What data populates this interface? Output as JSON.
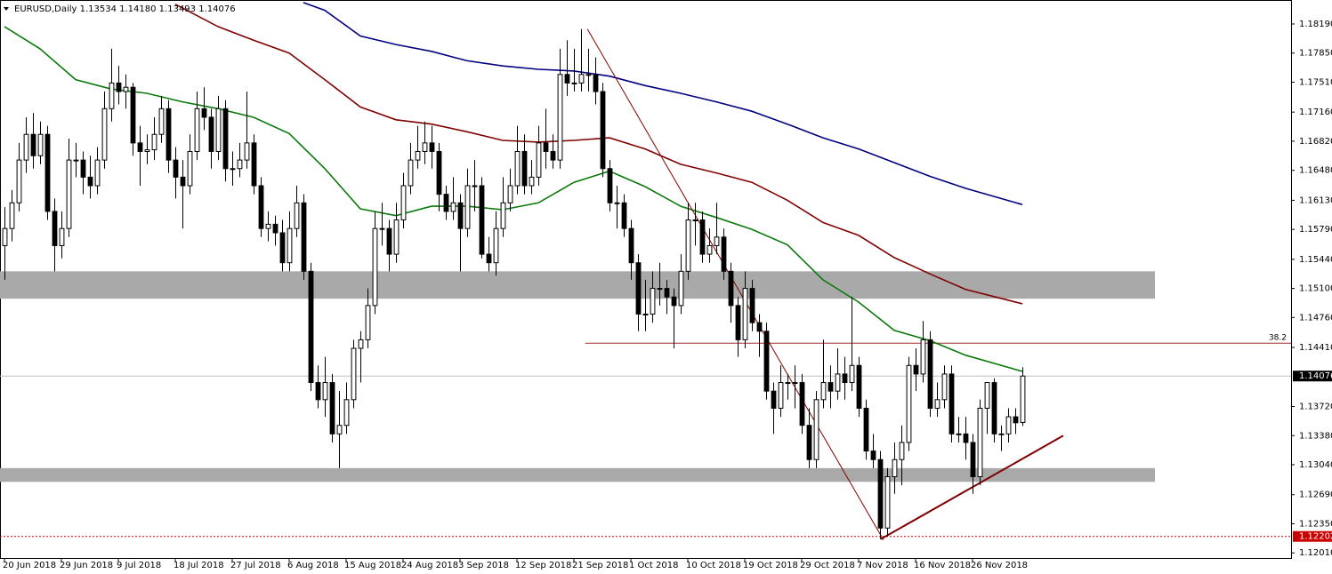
{
  "chart_data": {
    "type": "candlestick",
    "title": "EURUSD,Daily  1.13534 1.14180 1.13493 1.14076",
    "categories": [
      "20 Jun 2018",
      null,
      null,
      null,
      null,
      null,
      null,
      null,
      "29 Jun 2018",
      null,
      null,
      null,
      null,
      null,
      null,
      null,
      "9 Jul 2018",
      null,
      null,
      null,
      null,
      null,
      null,
      null,
      "18 Jul 2018",
      null,
      null,
      null,
      null,
      null,
      null,
      null,
      "27 Jul 2018",
      null,
      null,
      null,
      null,
      null,
      null,
      null,
      "6 Aug 2018",
      null,
      null,
      null,
      null,
      null,
      null,
      null,
      "15 Aug 2018",
      null,
      null,
      null,
      null,
      null,
      null,
      null,
      "24 Aug 2018",
      null,
      null,
      null,
      null,
      null,
      null,
      null,
      "3 Sep 2018",
      null,
      null,
      null,
      null,
      null,
      null,
      null,
      "12 Sep 2018",
      null,
      null,
      null,
      null,
      null,
      null,
      null,
      "21 Sep 2018",
      null,
      null,
      null,
      null,
      null,
      null,
      null,
      "1 Oct 2018",
      null,
      null,
      null,
      null,
      null,
      null,
      null,
      "10 Oct 2018",
      null,
      null,
      null,
      null,
      null,
      null,
      null,
      "19 Oct 2018",
      null,
      null,
      null,
      null,
      null,
      null,
      null,
      "29 Oct 2018",
      null,
      null,
      null,
      null,
      null,
      null,
      null,
      "7 Nov 2018",
      null,
      null,
      null,
      null,
      null,
      null,
      null,
      "16 Nov 2018",
      null,
      null,
      null,
      null,
      null,
      null,
      null,
      "26 Nov 2018",
      null,
      null,
      null,
      null,
      null,
      null,
      null
    ],
    "candles": [
      [
        1.156,
        1.1605,
        1.152,
        1.158
      ],
      [
        1.158,
        1.1625,
        1.1565,
        1.161
      ],
      [
        1.161,
        1.168,
        1.16,
        1.166
      ],
      [
        1.166,
        1.171,
        1.1645,
        1.169
      ],
      [
        1.169,
        1.1715,
        1.165,
        1.1665
      ],
      [
        1.1665,
        1.1705,
        1.1655,
        1.169
      ],
      [
        1.169,
        1.17,
        1.159,
        1.16
      ],
      [
        1.16,
        1.1615,
        1.153,
        1.156
      ],
      [
        1.156,
        1.16,
        1.1545,
        1.158
      ],
      [
        1.158,
        1.1685,
        1.157,
        1.166
      ],
      [
        1.166,
        1.168,
        1.164,
        1.166
      ],
      [
        1.166,
        1.167,
        1.162,
        1.164
      ],
      [
        1.164,
        1.1665,
        1.1615,
        1.163
      ],
      [
        1.163,
        1.1675,
        1.162,
        1.166
      ],
      [
        1.166,
        1.174,
        1.165,
        1.172
      ],
      [
        1.172,
        1.179,
        1.1705,
        1.175
      ],
      [
        1.175,
        1.177,
        1.1725,
        1.174
      ],
      [
        1.174,
        1.176,
        1.172,
        1.1745
      ],
      [
        1.1745,
        1.175,
        1.1665,
        1.168
      ],
      [
        1.168,
        1.17,
        1.163,
        1.167
      ],
      [
        1.167,
        1.169,
        1.1655,
        1.1672
      ],
      [
        1.1672,
        1.171,
        1.166,
        1.169
      ],
      [
        1.169,
        1.1735,
        1.168,
        1.172
      ],
      [
        1.172,
        1.173,
        1.1645,
        1.166
      ],
      [
        1.166,
        1.1675,
        1.1615,
        1.164
      ],
      [
        1.164,
        1.166,
        1.158,
        1.163
      ],
      [
        1.163,
        1.169,
        1.162,
        1.167
      ],
      [
        1.167,
        1.174,
        1.166,
        1.172
      ],
      [
        1.172,
        1.1745,
        1.1695,
        1.171
      ],
      [
        1.171,
        1.172,
        1.165,
        1.167
      ],
      [
        1.167,
        1.1735,
        1.166,
        1.172
      ],
      [
        1.172,
        1.173,
        1.1635,
        1.165
      ],
      [
        1.165,
        1.167,
        1.163,
        1.165
      ],
      [
        1.165,
        1.168,
        1.164,
        1.166
      ],
      [
        1.166,
        1.174,
        1.165,
        1.168
      ],
      [
        1.168,
        1.169,
        1.162,
        1.163
      ],
      [
        1.163,
        1.164,
        1.157,
        1.158
      ],
      [
        1.158,
        1.16,
        1.1565,
        1.1585
      ],
      [
        1.1585,
        1.1595,
        1.156,
        1.1575
      ],
      [
        1.1575,
        1.159,
        1.153,
        1.154
      ],
      [
        1.154,
        1.16,
        1.153,
        1.158
      ],
      [
        1.158,
        1.163,
        1.157,
        1.161
      ],
      [
        1.161,
        1.162,
        1.152,
        1.153
      ],
      [
        1.153,
        1.154,
        1.139,
        1.14
      ],
      [
        1.14,
        1.142,
        1.137,
        1.138
      ],
      [
        1.138,
        1.143,
        1.136,
        1.14
      ],
      [
        1.14,
        1.141,
        1.133,
        1.134
      ],
      [
        1.134,
        1.139,
        1.13,
        1.135
      ],
      [
        1.135,
        1.14,
        1.134,
        1.138
      ],
      [
        1.138,
        1.145,
        1.137,
        1.144
      ],
      [
        1.144,
        1.146,
        1.14,
        1.145
      ],
      [
        1.145,
        1.151,
        1.144,
        1.149
      ],
      [
        1.149,
        1.16,
        1.148,
        1.158
      ],
      [
        1.158,
        1.161,
        1.156,
        1.158
      ],
      [
        1.158,
        1.159,
        1.153,
        1.155
      ],
      [
        1.155,
        1.161,
        1.154,
        1.159
      ],
      [
        1.159,
        1.1645,
        1.158,
        1.163
      ],
      [
        1.163,
        1.168,
        1.162,
        1.166
      ],
      [
        1.166,
        1.17,
        1.165,
        1.167
      ],
      [
        1.167,
        1.1705,
        1.1655,
        1.168
      ],
      [
        1.168,
        1.17,
        1.165,
        1.167
      ],
      [
        1.167,
        1.168,
        1.16,
        1.162
      ],
      [
        1.162,
        1.163,
        1.159,
        1.16
      ],
      [
        1.16,
        1.164,
        1.159,
        1.161
      ],
      [
        1.161,
        1.162,
        1.153,
        1.158
      ],
      [
        1.158,
        1.165,
        1.157,
        1.163
      ],
      [
        1.163,
        1.166,
        1.16,
        1.163
      ],
      [
        1.163,
        1.164,
        1.1545,
        1.155
      ],
      [
        1.155,
        1.157,
        1.153,
        1.154
      ],
      [
        1.154,
        1.16,
        1.1525,
        1.158
      ],
      [
        1.158,
        1.164,
        1.157,
        1.161
      ],
      [
        1.161,
        1.165,
        1.16,
        1.163
      ],
      [
        1.163,
        1.17,
        1.162,
        1.167
      ],
      [
        1.167,
        1.169,
        1.162,
        1.163
      ],
      [
        1.163,
        1.166,
        1.162,
        1.164
      ],
      [
        1.164,
        1.17,
        1.163,
        1.168
      ],
      [
        1.168,
        1.172,
        1.165,
        1.167
      ],
      [
        1.167,
        1.169,
        1.165,
        1.166
      ],
      [
        1.166,
        1.179,
        1.165,
        1.176
      ],
      [
        1.176,
        1.18,
        1.1735,
        1.175
      ],
      [
        1.175,
        1.179,
        1.174,
        1.175
      ],
      [
        1.175,
        1.1813,
        1.174,
        1.176
      ],
      [
        1.176,
        1.179,
        1.174,
        1.176
      ],
      [
        1.176,
        1.178,
        1.1725,
        1.174
      ],
      [
        1.174,
        1.175,
        1.164,
        1.165
      ],
      [
        1.165,
        1.166,
        1.16,
        1.161
      ],
      [
        1.161,
        1.163,
        1.158,
        1.161
      ],
      [
        1.161,
        1.162,
        1.157,
        1.158
      ],
      [
        1.158,
        1.159,
        1.152,
        1.154
      ],
      [
        1.154,
        1.155,
        1.146,
        1.148
      ],
      [
        1.148,
        1.152,
        1.146,
        1.148
      ],
      [
        1.148,
        1.153,
        1.147,
        1.151
      ],
      [
        1.151,
        1.154,
        1.149,
        1.151
      ],
      [
        1.151,
        1.152,
        1.148,
        1.15
      ],
      [
        1.15,
        1.151,
        1.144,
        1.149
      ],
      [
        1.149,
        1.155,
        1.148,
        1.153
      ],
      [
        1.153,
        1.161,
        1.152,
        1.159
      ],
      [
        1.159,
        1.161,
        1.156,
        1.159
      ],
      [
        1.159,
        1.16,
        1.154,
        1.155
      ],
      [
        1.155,
        1.158,
        1.154,
        1.156
      ],
      [
        1.156,
        1.161,
        1.155,
        1.157
      ],
      [
        1.157,
        1.158,
        1.152,
        1.153
      ],
      [
        1.153,
        1.154,
        1.147,
        1.149
      ],
      [
        1.149,
        1.15,
        1.143,
        1.145
      ],
      [
        1.145,
        1.153,
        1.144,
        1.151
      ],
      [
        1.151,
        1.152,
        1.146,
        1.147
      ],
      [
        1.147,
        1.148,
        1.143,
        1.146
      ],
      [
        1.146,
        1.147,
        1.138,
        1.139
      ],
      [
        1.139,
        1.14,
        1.134,
        1.137
      ],
      [
        1.137,
        1.142,
        1.136,
        1.14
      ],
      [
        1.14,
        1.141,
        1.138,
        1.14
      ],
      [
        1.14,
        1.142,
        1.137,
        1.14
      ],
      [
        1.14,
        1.141,
        1.134,
        1.135
      ],
      [
        1.135,
        1.137,
        1.13,
        1.131
      ],
      [
        1.131,
        1.139,
        1.13,
        1.138
      ],
      [
        1.138,
        1.145,
        1.137,
        1.14
      ],
      [
        1.14,
        1.142,
        1.137,
        1.139
      ],
      [
        1.139,
        1.144,
        1.138,
        1.141
      ],
      [
        1.141,
        1.143,
        1.138,
        1.14
      ],
      [
        1.14,
        1.15,
        1.139,
        1.142
      ],
      [
        1.142,
        1.143,
        1.136,
        1.137
      ],
      [
        1.137,
        1.138,
        1.131,
        1.132
      ],
      [
        1.132,
        1.134,
        1.13,
        1.131
      ],
      [
        1.131,
        1.132,
        1.1217,
        1.123
      ],
      [
        1.123,
        1.13,
        1.122,
        1.129
      ],
      [
        1.129,
        1.133,
        1.127,
        1.131
      ],
      [
        1.131,
        1.135,
        1.128,
        1.133
      ],
      [
        1.133,
        1.143,
        1.132,
        1.142
      ],
      [
        1.142,
        1.144,
        1.139,
        1.141
      ],
      [
        1.141,
        1.1472,
        1.14,
        1.145
      ],
      [
        1.145,
        1.146,
        1.136,
        1.137
      ],
      [
        1.137,
        1.14,
        1.136,
        1.138
      ],
      [
        1.138,
        1.142,
        1.137,
        1.141
      ],
      [
        1.141,
        1.142,
        1.133,
        1.134
      ],
      [
        1.134,
        1.136,
        1.133,
        1.134
      ],
      [
        1.134,
        1.136,
        1.131,
        1.133
      ],
      [
        1.133,
        1.134,
        1.127,
        1.129
      ],
      [
        1.129,
        1.138,
        1.128,
        1.137
      ],
      [
        1.137,
        1.14,
        1.134,
        1.14
      ],
      [
        1.14,
        1.1405,
        1.133,
        1.134
      ],
      [
        1.134,
        1.135,
        1.132,
        1.134
      ],
      [
        1.134,
        1.137,
        1.133,
        1.136
      ],
      [
        1.136,
        1.137,
        1.134,
        1.1353
      ],
      [
        1.13534,
        1.1418,
        1.13493,
        1.14076
      ]
    ],
    "series": [
      {
        "color": "#0a7a0a",
        "x": [
          0,
          5,
          10,
          15,
          20,
          25,
          30,
          35,
          40,
          45,
          50,
          55,
          60,
          65,
          70,
          75,
          80,
          85,
          90,
          95,
          100,
          105,
          110,
          115,
          120,
          125,
          130,
          135,
          143
        ],
        "values": [
          1.1816,
          1.179,
          1.1754,
          1.1743,
          1.1738,
          1.1728,
          1.172,
          1.171,
          1.1691,
          1.165,
          1.1603,
          1.1595,
          1.1606,
          1.1606,
          1.1602,
          1.161,
          1.1634,
          1.1647,
          1.1629,
          1.1606,
          1.1593,
          1.1579,
          1.1561,
          1.152,
          1.1494,
          1.1461,
          1.1449,
          1.1432,
          1.1413
        ]
      },
      {
        "color": "#800000",
        "x": [
          24,
          30,
          35,
          40,
          45,
          50,
          55,
          60,
          65,
          70,
          75,
          80,
          85,
          90,
          95,
          100,
          105,
          110,
          115,
          120,
          125,
          130,
          135,
          143
        ],
        "values": [
          1.1842,
          1.1816,
          1.18,
          1.1785,
          1.1754,
          1.1722,
          1.1707,
          1.1702,
          1.1693,
          1.1683,
          1.1681,
          1.1683,
          1.1686,
          1.1673,
          1.1655,
          1.1645,
          1.1634,
          1.1613,
          1.1587,
          1.1572,
          1.1546,
          1.1527,
          1.1509,
          1.1492
        ]
      },
      {
        "color": "#000080",
        "x": [
          42,
          45,
          50,
          55,
          60,
          65,
          70,
          75,
          80,
          85,
          90,
          95,
          100,
          105,
          110,
          115,
          120,
          125,
          130,
          135,
          143
        ],
        "values": [
          1.1844,
          1.1835,
          1.1805,
          1.1795,
          1.1787,
          1.1776,
          1.177,
          1.1766,
          1.1764,
          1.1758,
          1.1747,
          1.1738,
          1.1728,
          1.1717,
          1.1702,
          1.1686,
          1.1673,
          1.1657,
          1.1641,
          1.1627,
          1.1608
        ]
      }
    ],
    "zones": [
      [
        1.153,
        1.1498
      ],
      [
        1.13,
        1.1284
      ]
    ],
    "fib_line": {
      "value": 1.1446,
      "start": 81.6,
      "label": "38.2",
      "color": "#a52a2a"
    },
    "trendlines": [
      {
        "color": "#800000",
        "x": [
          81.9,
          123.5
        ],
        "values": [
          1.1813,
          1.1216
        ]
      },
      {
        "color": "#800000",
        "x": [
          123.1,
          148.75
        ],
        "values": [
          1.1217,
          1.1338
        ]
      }
    ],
    "price_label": {
      "value": 1.14076,
      "label": "1.14076"
    },
    "low_label": {
      "value": 1.12202,
      "label": "1.12202",
      "color": "#cc0000"
    },
    "xlim": [
      -0.625,
      180.75
    ],
    "ylim": [
      1.1195,
      1.1847
    ],
    "yticks": [
      {
        "value": 1.1819,
        "label": "1.18190"
      },
      {
        "value": 1.1785,
        "label": "1.17850"
      },
      {
        "value": 1.1751,
        "label": "1.17510"
      },
      {
        "value": 1.1716,
        "label": "1.17160"
      },
      {
        "value": 1.1682,
        "label": "1.16820"
      },
      {
        "value": 1.1648,
        "label": "1.16480"
      },
      {
        "value": 1.1613,
        "label": "1.16130"
      },
      {
        "value": 1.1579,
        "label": "1.15790"
      },
      {
        "value": 1.1544,
        "label": "1.15440"
      },
      {
        "value": 1.151,
        "label": "1.15100"
      },
      {
        "value": 1.1476,
        "label": "1.14760"
      },
      {
        "value": 1.1441,
        "label": "1.14410"
      },
      {
        "value": 1.1372,
        "label": "1.13720"
      },
      {
        "value": 1.1338,
        "label": "1.13380"
      },
      {
        "value": 1.1304,
        "label": "1.13040"
      },
      {
        "value": 1.1269,
        "label": "1.12690"
      },
      {
        "value": 1.1235,
        "label": "1.12350"
      },
      {
        "value": 1.1201,
        "label": "1.12010"
      }
    ]
  }
}
